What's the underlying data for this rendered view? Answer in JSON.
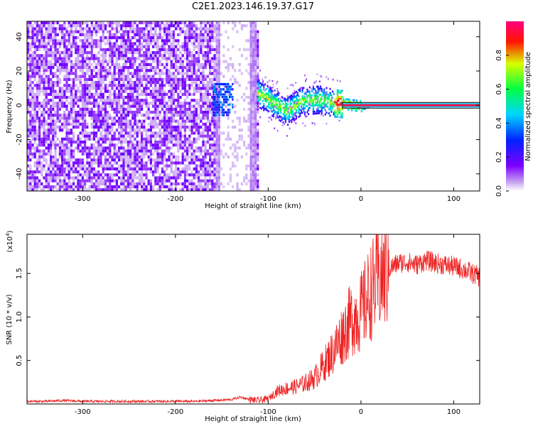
{
  "figure_title": "C2E1.2023.146.19.37.G17",
  "chart_data": [
    {
      "type": "heatmap",
      "title": "C2E1.2023.146.19.37.G17",
      "xlabel": "Height of straight line (km)",
      "ylabel": "Frequency (Hz)",
      "xlim": [
        -360,
        128
      ],
      "ylim": [
        -50,
        49
      ],
      "xticks": [
        -300,
        -200,
        -100,
        0,
        100
      ],
      "xtick_labels": [
        "-300",
        "-200",
        "-100",
        "0",
        "100"
      ],
      "yticks": [
        -40,
        -20,
        0,
        20,
        40
      ],
      "ytick_labels": [
        "-40",
        "-20",
        "0",
        "20",
        "40"
      ],
      "colorbar": {
        "label": "Normalized spectral amplitude",
        "range": [
          0.0,
          1.0
        ],
        "ticks": [
          0.0,
          0.2,
          0.4,
          0.6,
          0.8
        ],
        "tick_labels": [
          "0.0",
          "0.2",
          "0.4",
          "0.6",
          "0.8"
        ],
        "colors": [
          "#ffffff",
          "#c9a6f2",
          "#7b00ff",
          "#0022ff",
          "#00d5ff",
          "#00ff44",
          "#d8ff00",
          "#ff1500",
          "#ff007f"
        ]
      },
      "features": {
        "noise_region_x": [
          -360,
          -112
        ],
        "noise_gap_x": [
          -157,
          -113
        ],
        "burst_x": [
          -160,
          -138
        ],
        "burst_freq": [
          -5,
          14
        ],
        "band_start_x": -112,
        "band_freq_center": [
          [
            -112,
            8
          ],
          [
            -95,
            2
          ],
          [
            -80,
            -3
          ],
          [
            -65,
            3
          ],
          [
            -45,
            4
          ],
          [
            -30,
            2
          ],
          [
            -15,
            1
          ],
          [
            0,
            0
          ],
          [
            128,
            0
          ]
        ],
        "carrier_line_start_x": 0,
        "carrier_line_freq": 0
      }
    },
    {
      "type": "line",
      "xlabel": "Height of straight line (km)",
      "ylabel": "SNR (10 * v/v)",
      "y_multiplier_label": "(x10",
      "y_multiplier_exp": "4",
      "y_multiplier_close": ")",
      "xlim": [
        -360,
        128
      ],
      "ylim": [
        0.0,
        1.95
      ],
      "xticks": [
        -300,
        -200,
        -100,
        0,
        100
      ],
      "xtick_labels": [
        "-300",
        "-200",
        "-100",
        "0",
        "100"
      ],
      "yticks": [
        0.5,
        1.0,
        1.5
      ],
      "ytick_labels": [
        "0.5",
        "1.0",
        "1.5"
      ],
      "line_color": "#ee2222",
      "series": [
        {
          "x": [
            -360,
            -340,
            -320,
            -300,
            -280,
            -260,
            -240,
            -220,
            -200,
            -180,
            -160,
            -140,
            -130,
            -120,
            -110,
            -100,
            -90,
            -80,
            -70,
            -60,
            -50,
            -40,
            -30,
            -20,
            -10,
            0,
            10,
            20,
            30,
            40,
            50,
            60,
            70,
            80,
            90,
            100,
            110,
            120,
            128
          ],
          "values": [
            0.03,
            0.03,
            0.04,
            0.03,
            0.03,
            0.03,
            0.03,
            0.03,
            0.03,
            0.03,
            0.04,
            0.05,
            0.08,
            0.05,
            0.04,
            0.06,
            0.15,
            0.18,
            0.2,
            0.24,
            0.3,
            0.45,
            0.6,
            0.8,
            0.98,
            1.05,
            1.28,
            1.45,
            1.55,
            1.62,
            1.63,
            1.6,
            1.65,
            1.62,
            1.6,
            1.58,
            1.55,
            1.5,
            1.46
          ]
        }
      ]
    }
  ]
}
